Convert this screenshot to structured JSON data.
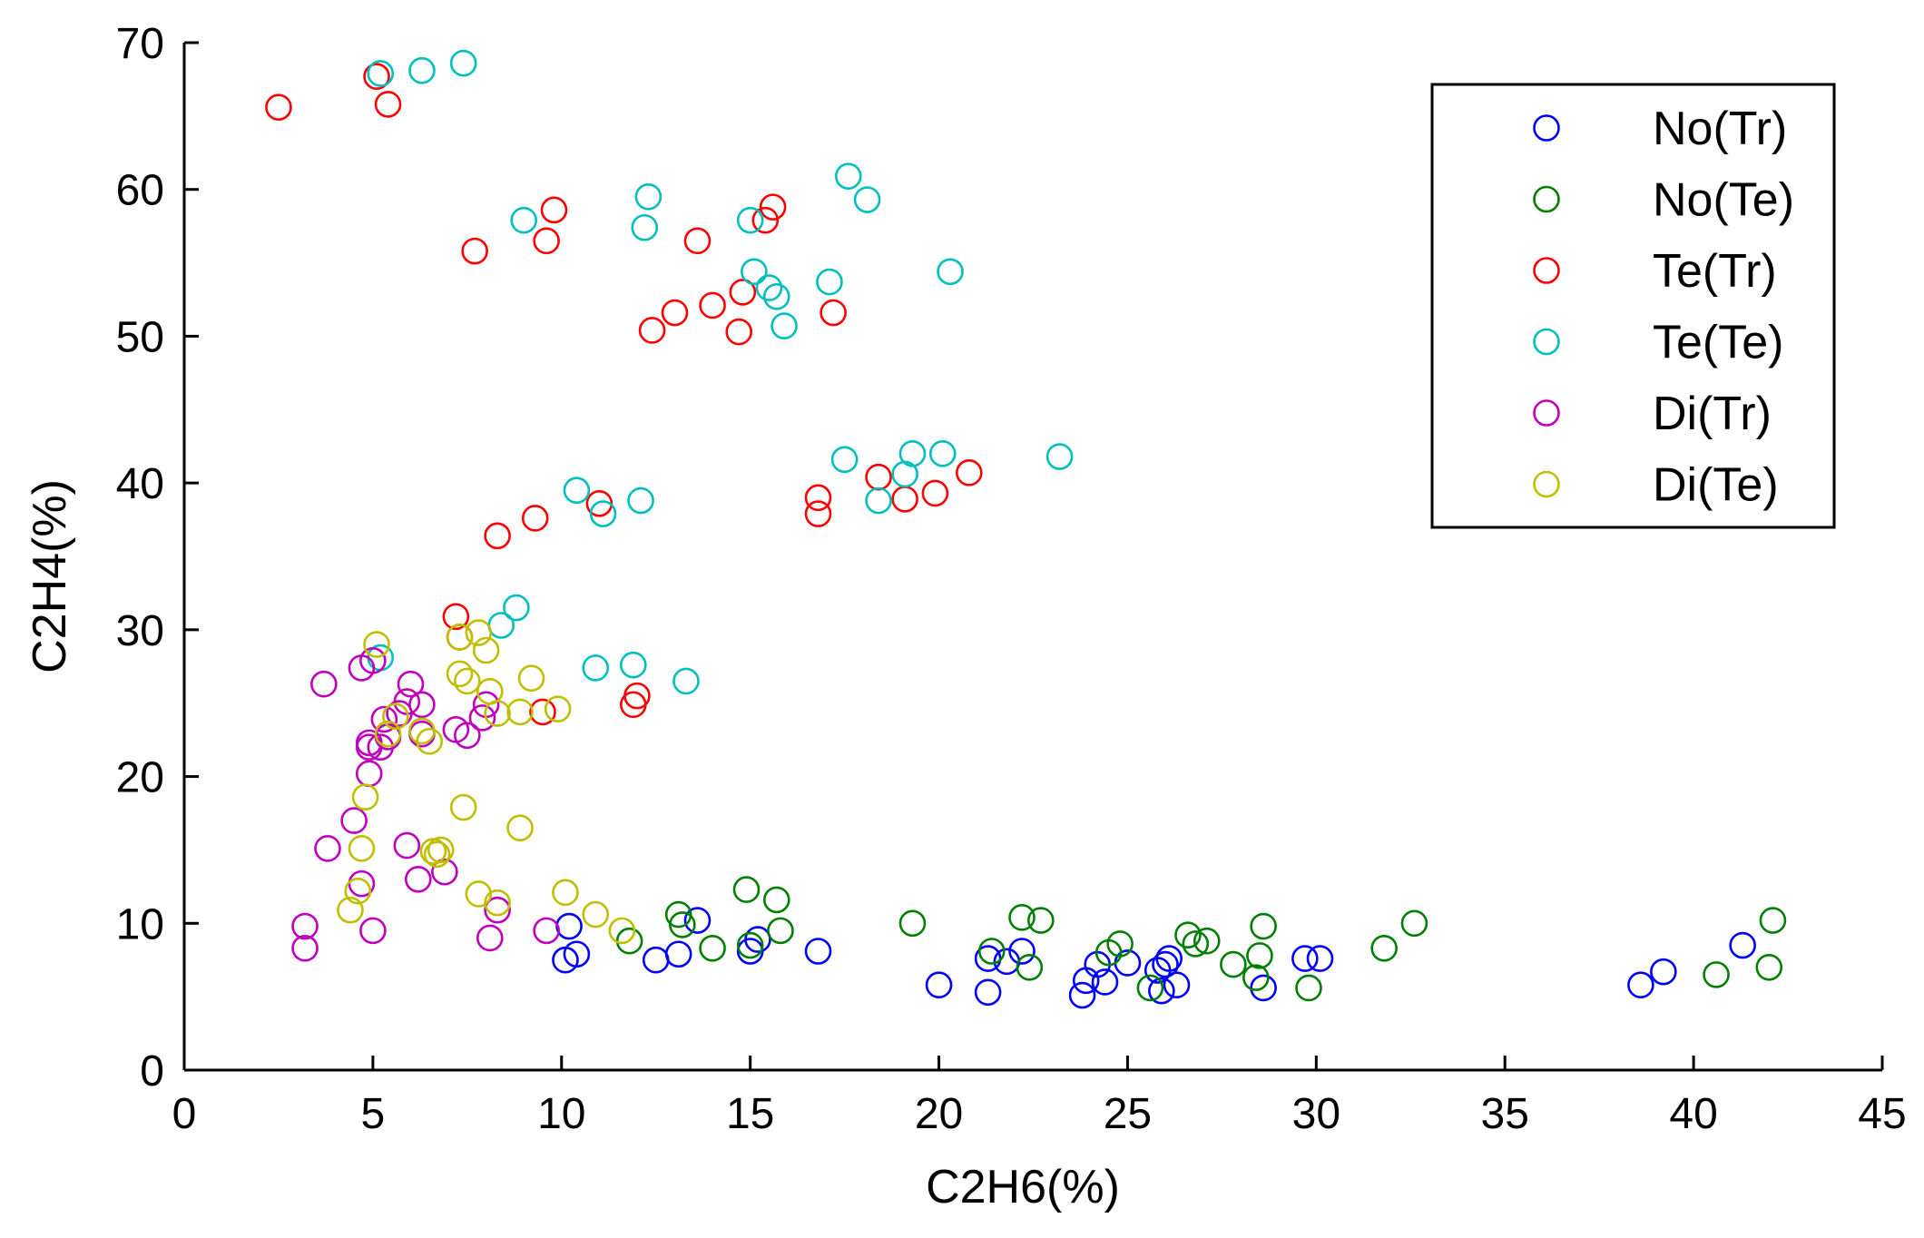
{
  "chart_data": {
    "type": "scatter",
    "title": "",
    "xlabel": "C2H6(%)",
    "ylabel": "C2H4(%)",
    "xlim": [
      0,
      45
    ],
    "ylim": [
      0,
      70
    ],
    "xticks": [
      0,
      5,
      10,
      15,
      20,
      25,
      30,
      35,
      40,
      45
    ],
    "yticks": [
      0,
      10,
      20,
      30,
      40,
      50,
      60,
      70
    ],
    "grid": false,
    "legend_position": "top-right",
    "marker": "open-circle",
    "series": [
      {
        "name": "No(Tr)",
        "color": "#0000ff",
        "points": [
          [
            10.2,
            9.8
          ],
          [
            10.1,
            7.5
          ],
          [
            10.4,
            7.9
          ],
          [
            12.5,
            7.5
          ],
          [
            13.1,
            7.9
          ],
          [
            13.6,
            10.2
          ],
          [
            15.0,
            8.1
          ],
          [
            15.2,
            8.9
          ],
          [
            16.8,
            8.1
          ],
          [
            20.0,
            5.8
          ],
          [
            21.3,
            7.6
          ],
          [
            21.3,
            5.3
          ],
          [
            21.8,
            7.4
          ],
          [
            22.2,
            8.1
          ],
          [
            23.8,
            5.1
          ],
          [
            23.9,
            6.1
          ],
          [
            24.2,
            7.2
          ],
          [
            24.4,
            6.0
          ],
          [
            25.0,
            7.3
          ],
          [
            25.8,
            6.8
          ],
          [
            25.9,
            5.4
          ],
          [
            26.0,
            7.2
          ],
          [
            26.1,
            7.6
          ],
          [
            26.3,
            5.8
          ],
          [
            28.6,
            5.6
          ],
          [
            29.7,
            7.6
          ],
          [
            30.1,
            7.6
          ],
          [
            38.6,
            5.8
          ],
          [
            39.2,
            6.7
          ],
          [
            41.3,
            8.5
          ]
        ]
      },
      {
        "name": "No(Te)",
        "color": "#008000",
        "points": [
          [
            11.8,
            8.8
          ],
          [
            13.1,
            10.6
          ],
          [
            13.2,
            9.9
          ],
          [
            14.0,
            8.3
          ],
          [
            14.9,
            12.3
          ],
          [
            15.0,
            8.5
          ],
          [
            15.7,
            11.6
          ],
          [
            15.8,
            9.5
          ],
          [
            19.3,
            10.0
          ],
          [
            21.4,
            8.1
          ],
          [
            22.2,
            10.4
          ],
          [
            22.4,
            7.0
          ],
          [
            22.7,
            10.2
          ],
          [
            24.5,
            8.0
          ],
          [
            24.8,
            8.6
          ],
          [
            25.6,
            5.6
          ],
          [
            26.6,
            9.2
          ],
          [
            26.8,
            8.6
          ],
          [
            27.1,
            8.8
          ],
          [
            27.8,
            7.2
          ],
          [
            28.4,
            6.3
          ],
          [
            28.5,
            7.8
          ],
          [
            28.6,
            9.8
          ],
          [
            29.8,
            5.6
          ],
          [
            31.8,
            8.3
          ],
          [
            32.6,
            10.0
          ],
          [
            40.6,
            6.5
          ],
          [
            42.0,
            7.0
          ],
          [
            42.1,
            10.2
          ]
        ]
      },
      {
        "name": "Te(Tr)",
        "color": "#ff0000",
        "points": [
          [
            2.5,
            65.6
          ],
          [
            5.1,
            67.7
          ],
          [
            5.4,
            65.8
          ],
          [
            7.7,
            55.8
          ],
          [
            8.3,
            36.4
          ],
          [
            9.3,
            37.6
          ],
          [
            9.6,
            56.5
          ],
          [
            9.8,
            58.6
          ],
          [
            11.0,
            38.6
          ],
          [
            7.2,
            30.9
          ],
          [
            7.3,
            29.5
          ],
          [
            9.5,
            24.4
          ],
          [
            11.9,
            24.9
          ],
          [
            12.0,
            25.5
          ],
          [
            12.4,
            50.4
          ],
          [
            13.0,
            51.6
          ],
          [
            13.6,
            56.5
          ],
          [
            14.0,
            52.1
          ],
          [
            14.7,
            50.3
          ],
          [
            14.8,
            53.0
          ],
          [
            15.4,
            57.9
          ],
          [
            15.6,
            58.8
          ],
          [
            16.8,
            39.0
          ],
          [
            16.8,
            37.9
          ],
          [
            17.2,
            51.6
          ],
          [
            18.4,
            40.4
          ],
          [
            19.1,
            38.9
          ],
          [
            19.9,
            39.3
          ],
          [
            20.8,
            40.7
          ]
        ]
      },
      {
        "name": "Te(Te)",
        "color": "#00bfbf",
        "points": [
          [
            5.2,
            67.9
          ],
          [
            6.3,
            68.1
          ],
          [
            7.4,
            68.6
          ],
          [
            9.0,
            57.9
          ],
          [
            10.4,
            39.5
          ],
          [
            11.1,
            37.9
          ],
          [
            12.1,
            38.8
          ],
          [
            12.2,
            57.4
          ],
          [
            12.3,
            59.5
          ],
          [
            15.0,
            57.9
          ],
          [
            15.1,
            54.4
          ],
          [
            15.5,
            53.3
          ],
          [
            15.7,
            52.7
          ],
          [
            15.9,
            50.7
          ],
          [
            17.1,
            53.7
          ],
          [
            17.5,
            41.6
          ],
          [
            17.6,
            60.9
          ],
          [
            18.1,
            59.3
          ],
          [
            18.4,
            38.8
          ],
          [
            19.1,
            40.6
          ],
          [
            19.3,
            42.0
          ],
          [
            20.1,
            42.0
          ],
          [
            20.3,
            54.4
          ],
          [
            23.2,
            41.8
          ],
          [
            5.2,
            28.1
          ],
          [
            8.4,
            30.3
          ],
          [
            8.8,
            31.5
          ],
          [
            10.9,
            27.4
          ],
          [
            11.9,
            27.6
          ],
          [
            13.3,
            26.5
          ]
        ]
      },
      {
        "name": "Di(Tr)",
        "color": "#bf00bf",
        "points": [
          [
            3.2,
            9.8
          ],
          [
            3.2,
            8.3
          ],
          [
            3.7,
            26.3
          ],
          [
            3.8,
            15.1
          ],
          [
            4.5,
            17.0
          ],
          [
            4.7,
            27.4
          ],
          [
            4.7,
            12.7
          ],
          [
            4.9,
            20.2
          ],
          [
            4.9,
            22.0
          ],
          [
            4.9,
            22.3
          ],
          [
            5.0,
            27.9
          ],
          [
            5.0,
            9.5
          ],
          [
            5.2,
            22.0
          ],
          [
            5.3,
            23.9
          ],
          [
            5.4,
            22.7
          ],
          [
            5.7,
            24.3
          ],
          [
            5.9,
            25.1
          ],
          [
            5.9,
            15.3
          ],
          [
            6.0,
            26.3
          ],
          [
            6.2,
            13.0
          ],
          [
            6.3,
            24.9
          ],
          [
            6.3,
            22.9
          ],
          [
            6.9,
            13.5
          ],
          [
            7.2,
            23.2
          ],
          [
            7.5,
            22.8
          ],
          [
            7.9,
            24.0
          ],
          [
            8.0,
            24.9
          ],
          [
            8.1,
            9.0
          ],
          [
            8.3,
            10.9
          ],
          [
            9.6,
            9.5
          ]
        ]
      },
      {
        "name": "Di(Te)",
        "color": "#bfbf00",
        "points": [
          [
            4.4,
            10.9
          ],
          [
            4.6,
            12.2
          ],
          [
            4.7,
            15.1
          ],
          [
            4.8,
            18.6
          ],
          [
            5.1,
            29.0
          ],
          [
            5.4,
            22.9
          ],
          [
            5.6,
            24.1
          ],
          [
            6.3,
            23.1
          ],
          [
            6.5,
            22.4
          ],
          [
            6.6,
            14.9
          ],
          [
            6.7,
            14.7
          ],
          [
            6.8,
            15.0
          ],
          [
            7.3,
            27.0
          ],
          [
            7.3,
            29.5
          ],
          [
            7.4,
            17.9
          ],
          [
            7.5,
            26.5
          ],
          [
            7.8,
            29.8
          ],
          [
            7.8,
            12.0
          ],
          [
            8.0,
            28.6
          ],
          [
            8.1,
            25.8
          ],
          [
            8.3,
            24.3
          ],
          [
            8.3,
            11.4
          ],
          [
            8.9,
            24.4
          ],
          [
            8.9,
            16.5
          ],
          [
            9.2,
            26.7
          ],
          [
            9.9,
            24.6
          ],
          [
            10.1,
            12.1
          ],
          [
            10.9,
            10.6
          ],
          [
            11.6,
            9.5
          ]
        ]
      }
    ]
  }
}
